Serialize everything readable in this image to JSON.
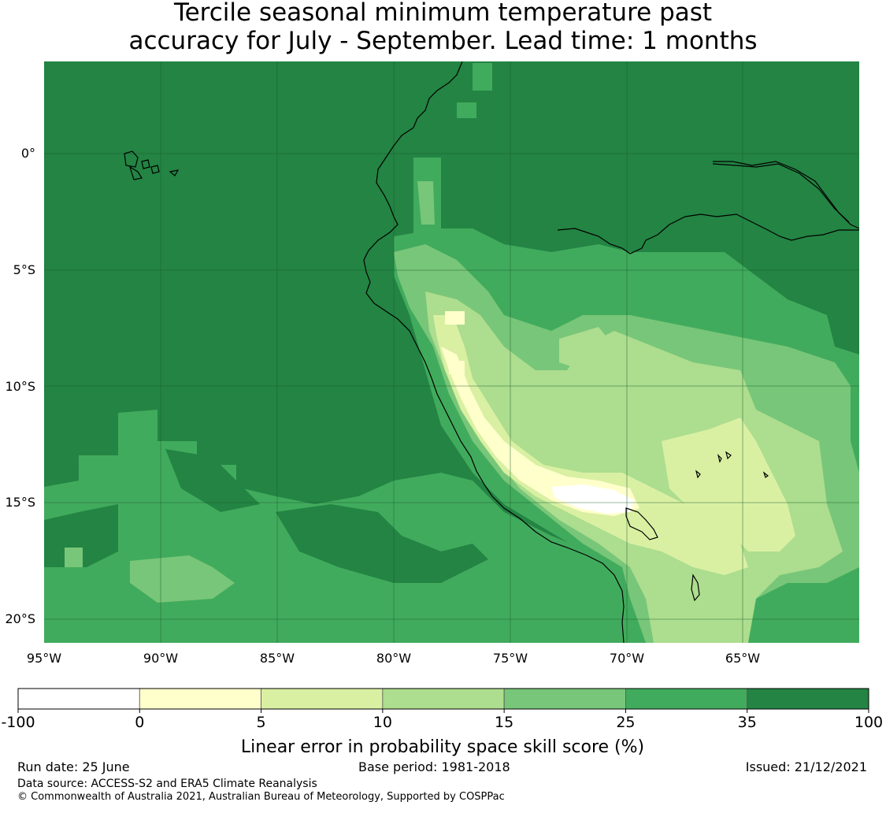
{
  "title": {
    "line1": "Tercile seasonal minimum temperature past",
    "line2": "accuracy for July - September. Lead time: 1 months"
  },
  "map": {
    "lat_labels": [
      "0°",
      "5°S",
      "10°S",
      "15°S",
      "20°S"
    ],
    "lon_labels": [
      "95°W",
      "90°W",
      "85°W",
      "80°W",
      "75°W",
      "70°W",
      "65°W"
    ],
    "colors": {
      "lt0": "#ffffff",
      "b0_5": "#ffffcc",
      "b5_10": "#d9f0a3",
      "b10_15": "#addd8e",
      "b15_25": "#78c679",
      "b25_35": "#41ab5d",
      "b35_100": "#238443",
      "coast": "#000000",
      "grid": "#1a5a2c"
    }
  },
  "colorbar": {
    "ticks": [
      "-100",
      "0",
      "5",
      "10",
      "15",
      "25",
      "35",
      "100"
    ],
    "colors": [
      "#ffffff",
      "#ffffcc",
      "#d9f0a3",
      "#addd8e",
      "#78c679",
      "#41ab5d",
      "#238443"
    ],
    "label": "Linear error in probability space skill score (%)"
  },
  "footer": {
    "run_date": "Run date: 25 June",
    "base_period": "Base period: 1981-2018",
    "issued": "Issued: 21/12/2021",
    "data_source": "Data source: ACCESS-S2 and ERA5 Climate Reanalysis",
    "copyright": "© Commonwealth of Australia 2021, Australian Bureau of Meteorology, Supported by COSPPac"
  }
}
